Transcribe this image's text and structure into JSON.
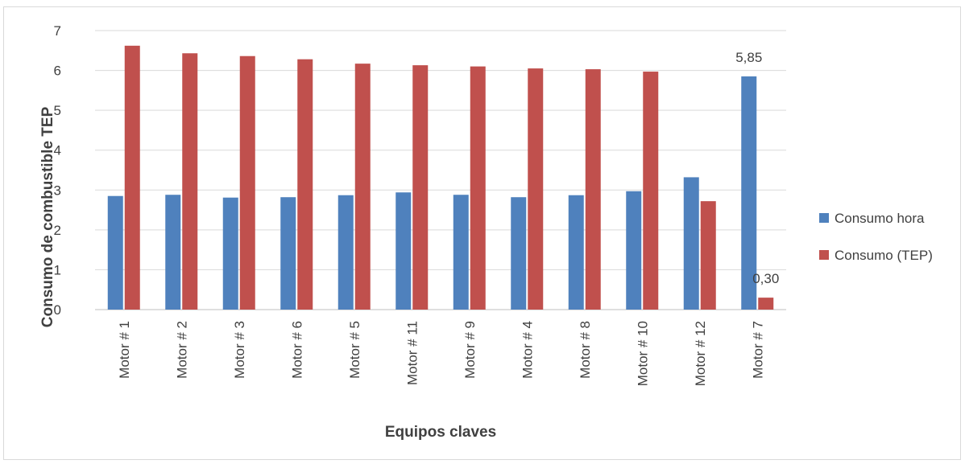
{
  "chart_data": {
    "type": "bar",
    "title": "",
    "xlabel": "Equipos claves",
    "ylabel": "Consumo de combustible TEP",
    "ylim": [
      0,
      7
    ],
    "yticks": [
      0,
      1,
      2,
      3,
      4,
      5,
      6,
      7
    ],
    "grid": true,
    "legend_position": "right",
    "categories": [
      "Motor # 1",
      "Motor # 2",
      "Motor # 3",
      "Motor # 6",
      "Motor # 5",
      "Motor # 11",
      "Motor # 9",
      "Motor # 4",
      "Motor # 8",
      "Motor # 10",
      "Motor # 12",
      "Motor # 7"
    ],
    "series": [
      {
        "name": "Consumo hora",
        "color": "#4f81bd",
        "values": [
          2.85,
          2.88,
          2.81,
          2.82,
          2.87,
          2.94,
          2.88,
          2.82,
          2.87,
          2.97,
          3.32,
          5.85
        ]
      },
      {
        "name": "Consumo (TEP)",
        "color": "#c0504d",
        "values": [
          6.62,
          6.43,
          6.36,
          6.28,
          6.17,
          6.13,
          6.1,
          6.05,
          6.03,
          5.97,
          2.72,
          0.3
        ]
      }
    ],
    "data_labels": [
      {
        "series": 0,
        "index": 11,
        "text": "5,85"
      },
      {
        "series": 1,
        "index": 11,
        "text": "0,30"
      }
    ]
  }
}
